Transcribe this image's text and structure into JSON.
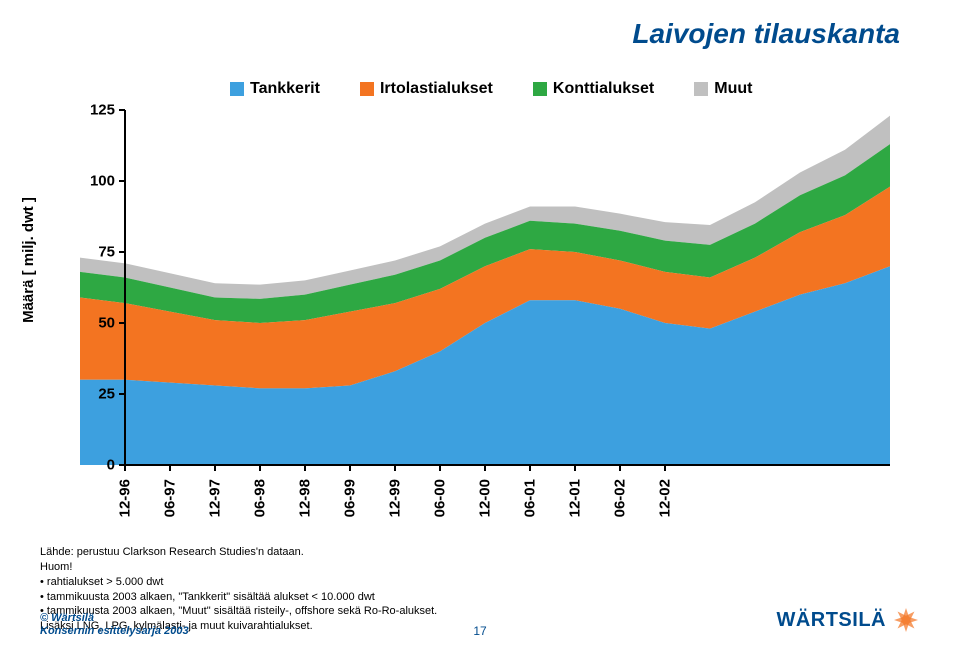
{
  "title": "Laivojen tilaukanta",
  "title_text": "Laivojen tilauskanta",
  "ylabel": "Määrä  [ milj. dwt ]",
  "legend": [
    {
      "label": "Tankkerit",
      "color": "#3da0df"
    },
    {
      "label": "Irtolastialukset",
      "color": "#f37421"
    },
    {
      "label": "Konttialukset",
      "color": "#2ea843"
    },
    {
      "label": "Muut",
      "color": "#c0c0c0"
    }
  ],
  "chart": {
    "type": "area-stacked",
    "background_color": "#ffffff",
    "plot_background": "#ffffff",
    "series_colors": [
      "#3da0df",
      "#f37421",
      "#2ea843",
      "#c0c0c0"
    ],
    "axis_color": "#000000",
    "axis_width": 2,
    "tick_length": 6,
    "ylim": [
      0,
      125
    ],
    "yticks": [
      0,
      25,
      50,
      75,
      100,
      125
    ],
    "x_categories": [
      "12-96",
      "06-97",
      "12-97",
      "06-98",
      "12-98",
      "06-99",
      "12-99",
      "06-00",
      "12-00",
      "06-01",
      "12-01",
      "06-02",
      "12-02"
    ],
    "x_spill_left": 1,
    "x_right_extra": 5,
    "series": [
      {
        "name": "Tankkerit",
        "values": [
          30,
          30,
          29,
          28,
          27,
          27,
          28,
          33,
          40,
          50,
          58,
          58,
          55,
          50,
          48,
          54,
          60,
          64,
          70
        ]
      },
      {
        "name": "Irtolastialukset",
        "values": [
          29,
          27,
          25,
          23,
          23,
          24,
          26,
          24,
          22,
          20,
          18,
          17,
          17,
          18,
          18,
          19,
          22,
          24,
          28
        ]
      },
      {
        "name": "Konttialukset",
        "values": [
          9,
          9,
          8.5,
          8,
          8.5,
          9,
          9.5,
          10,
          10,
          10,
          10,
          10,
          10.5,
          11,
          11.5,
          12,
          13,
          14,
          15
        ]
      },
      {
        "name": "Muut",
        "values": [
          5,
          5,
          5,
          5,
          5,
          5,
          5,
          5,
          5,
          5,
          5,
          6,
          6,
          6.5,
          7,
          7.5,
          8,
          9,
          10
        ]
      }
    ],
    "label_fontsize": 15,
    "label_fontweight": "bold"
  },
  "source_lines": [
    "Lähde: perustuu Clarkson Research Studies'n dataan.",
    "Huom!",
    "• rahtialukset > 5.000 dwt",
    "• tammikuusta 2003 alkaen, \"Tankkerit\" sisältää alukset < 10.000 dwt",
    "• tammikuusta 2003 alkaen, \"Muut\" sisältää risteily-, offshore sekä Ro-Ro-alukset.",
    "Lisäksi LNG, LPG, kylmälasti- ja muut kuivarahtialukset."
  ],
  "footer": {
    "copyright": "© Wärtsilä",
    "subtitle": "Konsernin esittelysarja 2003",
    "page_number": "17",
    "logo_text": "WÄRTSILÄ",
    "logo_mark_color": "#f37421",
    "logo_text_color": "#004b8d"
  }
}
